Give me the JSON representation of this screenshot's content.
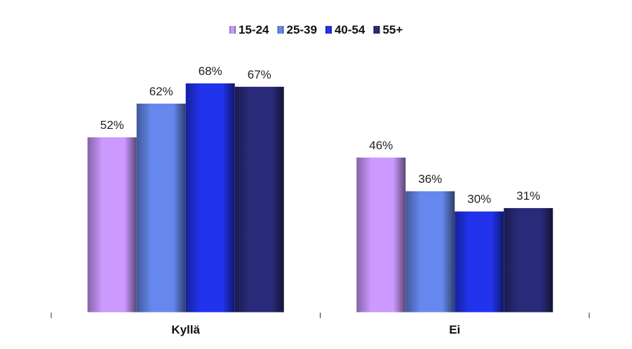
{
  "chart_data": {
    "type": "bar",
    "categories": [
      "Kyllä",
      "Ei"
    ],
    "series": [
      {
        "name": "15-24",
        "values": [
          52,
          46
        ],
        "color": "#cc99ff"
      },
      {
        "name": "25-39",
        "values": [
          62,
          36
        ],
        "color": "#6688ee"
      },
      {
        "name": "40-54",
        "values": [
          68,
          30
        ],
        "color": "#2233ee"
      },
      {
        "name": "55+",
        "values": [
          67,
          31
        ],
        "color": "#2a2a7a"
      }
    ],
    "value_suffix": "%",
    "ylim": [
      0,
      68
    ],
    "grid": false,
    "legend_position": "top-center",
    "title": "",
    "xlabel": "",
    "ylabel": ""
  }
}
